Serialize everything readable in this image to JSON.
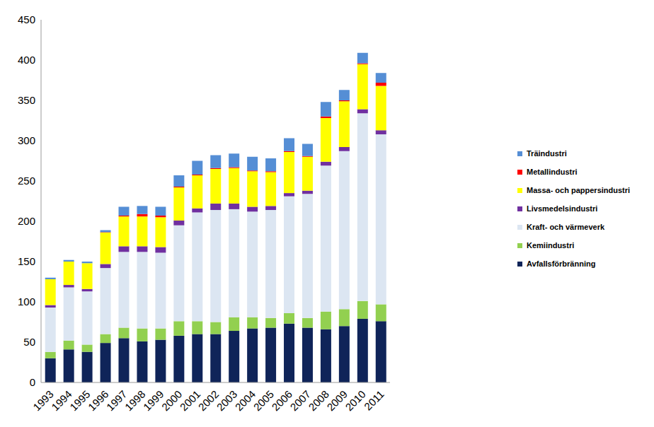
{
  "chart_data": {
    "type": "bar",
    "stacked": true,
    "grid": false,
    "legend": "right",
    "categories": [
      "1993",
      "1994",
      "1995",
      "1996",
      "1997",
      "1998",
      "1999",
      "2000",
      "2001",
      "2002",
      "2003",
      "2004",
      "2005",
      "2006",
      "2007",
      "2008",
      "2009",
      "2010",
      "2011"
    ],
    "ylim": [
      0,
      450
    ],
    "yticks": [
      0,
      50,
      100,
      150,
      200,
      250,
      300,
      350,
      400,
      450
    ],
    "series": [
      {
        "name": "Avfallsförbränning",
        "color": "#0F2459",
        "values": [
          30,
          41,
          38,
          49,
          55,
          51,
          53,
          58,
          60,
          60,
          64,
          67,
          68,
          73,
          68,
          66,
          70,
          79,
          76
        ]
      },
      {
        "name": "Kemiindustri",
        "color": "#92D050",
        "values": [
          8,
          11,
          9,
          11,
          13,
          16,
          14,
          18,
          16,
          15,
          17,
          14,
          12,
          13,
          12,
          22,
          21,
          22,
          21
        ]
      },
      {
        "name": "Kraft- och värmeverk",
        "color": "#DCE6F2",
        "values": [
          55,
          66,
          66,
          82,
          94,
          95,
          94,
          119,
          135,
          139,
          134,
          131,
          134,
          145,
          154,
          181,
          196,
          233,
          211
        ]
      },
      {
        "name": "Livsmedelsindustri",
        "color": "#7030A0",
        "values": [
          3,
          3,
          3,
          5,
          7,
          7,
          7,
          6,
          5,
          8,
          7,
          6,
          5,
          4,
          4,
          5,
          5,
          5,
          5
        ]
      },
      {
        "name": "Massa- och pappersindustri",
        "color": "#FFFF00",
        "values": [
          32,
          29,
          32,
          39,
          37,
          37,
          37,
          41,
          41,
          43,
          44,
          44,
          42,
          51,
          42,
          54,
          57,
          56,
          55
        ]
      },
      {
        "name": "Metallindustri",
        "color": "#FF0000",
        "values": [
          0,
          0,
          0,
          0.5,
          1,
          3,
          2,
          1,
          1,
          1,
          1,
          1,
          1,
          1,
          1,
          2,
          1,
          1,
          4
        ]
      },
      {
        "name": "Träindustri",
        "color": "#558ED5",
        "values": [
          2,
          2,
          2,
          2.5,
          11,
          10,
          11,
          14,
          17,
          16,
          17,
          17,
          16,
          16,
          15,
          18,
          13,
          13,
          12
        ]
      }
    ]
  }
}
